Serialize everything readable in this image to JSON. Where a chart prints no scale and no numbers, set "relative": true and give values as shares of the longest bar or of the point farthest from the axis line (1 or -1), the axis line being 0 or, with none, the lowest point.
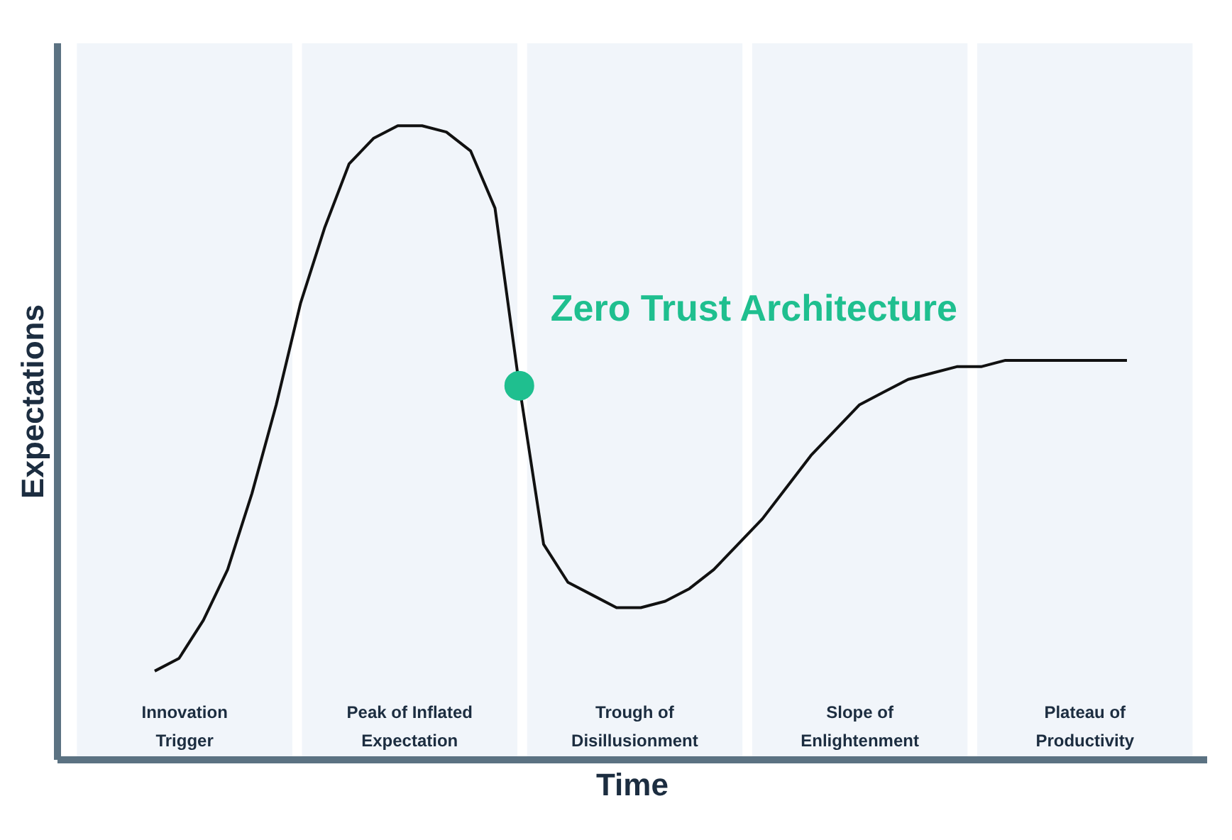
{
  "chart_data": {
    "type": "line",
    "relative": true,
    "xlabel": "Time",
    "ylabel": "Expectations",
    "categories": [
      null,
      null,
      null,
      null,
      null,
      null,
      null,
      null,
      null,
      null,
      null,
      null,
      null,
      null,
      null,
      null,
      null,
      null,
      null,
      null,
      null,
      null,
      null,
      null,
      null,
      null,
      null,
      null,
      null,
      null,
      null,
      null,
      null,
      null,
      null,
      null,
      null,
      null,
      null,
      null,
      null
    ],
    "series": [
      {
        "color": "#111111",
        "values": [
          0.14,
          0.16,
          0.22,
          0.3,
          0.42,
          0.56,
          0.72,
          0.84,
          0.94,
          0.98,
          1.0,
          1.0,
          0.99,
          0.96,
          0.87,
          0.59,
          0.34,
          0.28,
          0.26,
          0.24,
          0.24,
          0.25,
          0.27,
          0.3,
          0.34,
          0.38,
          0.43,
          0.48,
          0.52,
          0.56,
          0.58,
          0.6,
          0.61,
          0.62,
          0.62,
          0.63,
          0.63,
          0.63,
          0.63,
          0.63,
          0.63
        ]
      }
    ],
    "annotations": [
      "Zero Trust Architecture",
      "Innovation\nTrigger",
      "Peak of Inflated\nExpectation",
      "Trough of\nDisillusionment",
      "Slope of\nEnlightenment",
      "Plateau of\nProductivity"
    ],
    "marker": "none",
    "line_style": "solid"
  }
}
